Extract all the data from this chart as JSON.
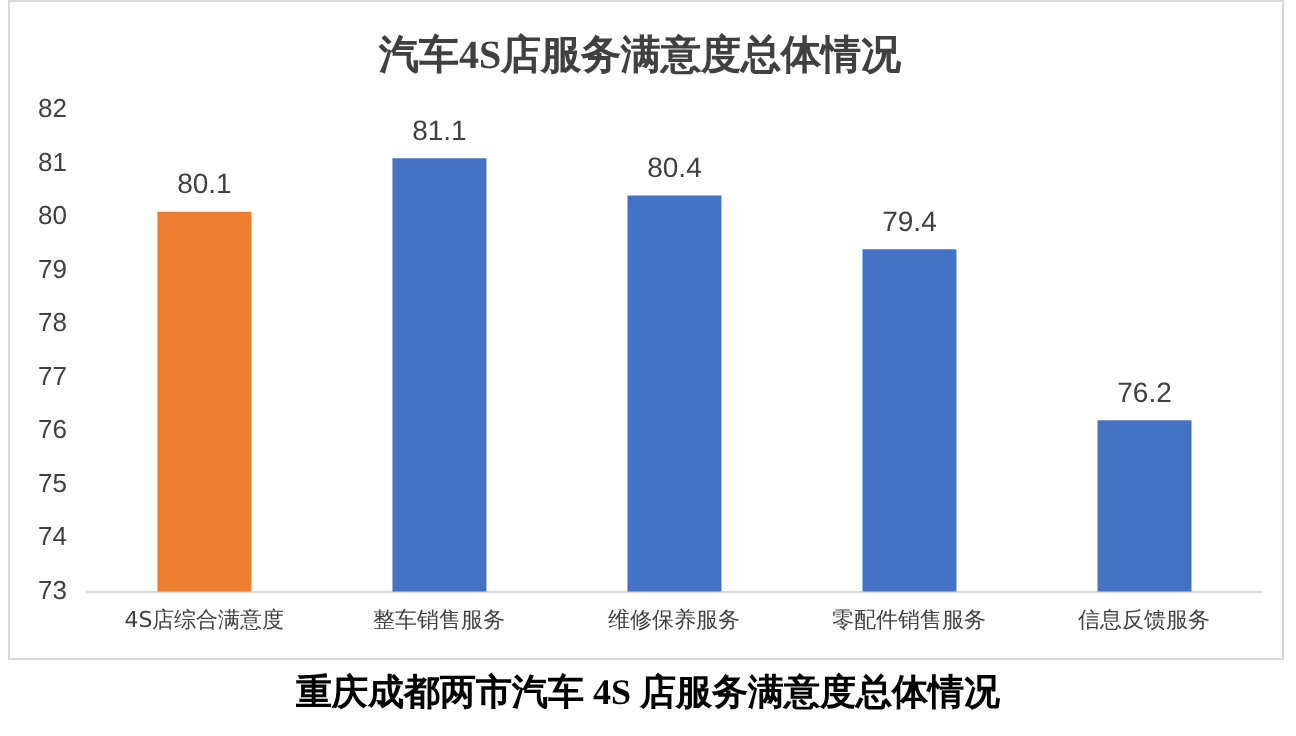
{
  "chart_data": {
    "type": "bar",
    "title": "汽车4S店服务满意度总体情况",
    "categories": [
      "4S店综合满意度",
      "整车销售服务",
      "维修保养服务",
      "零配件销售服务",
      "信息反馈服务"
    ],
    "values": [
      80.1,
      81.1,
      80.4,
      79.4,
      76.2
    ],
    "colors": [
      "#ed7d31",
      "#4472c4",
      "#4472c4",
      "#4472c4",
      "#4472c4"
    ],
    "ylim": [
      73,
      82
    ],
    "yticks": [
      73,
      74,
      75,
      76,
      77,
      78,
      79,
      80,
      81,
      82
    ],
    "grid": false,
    "data_labels": true,
    "annotations": [
      "重庆成都两市汽车 4S 店服务满意度总体情况"
    ]
  }
}
